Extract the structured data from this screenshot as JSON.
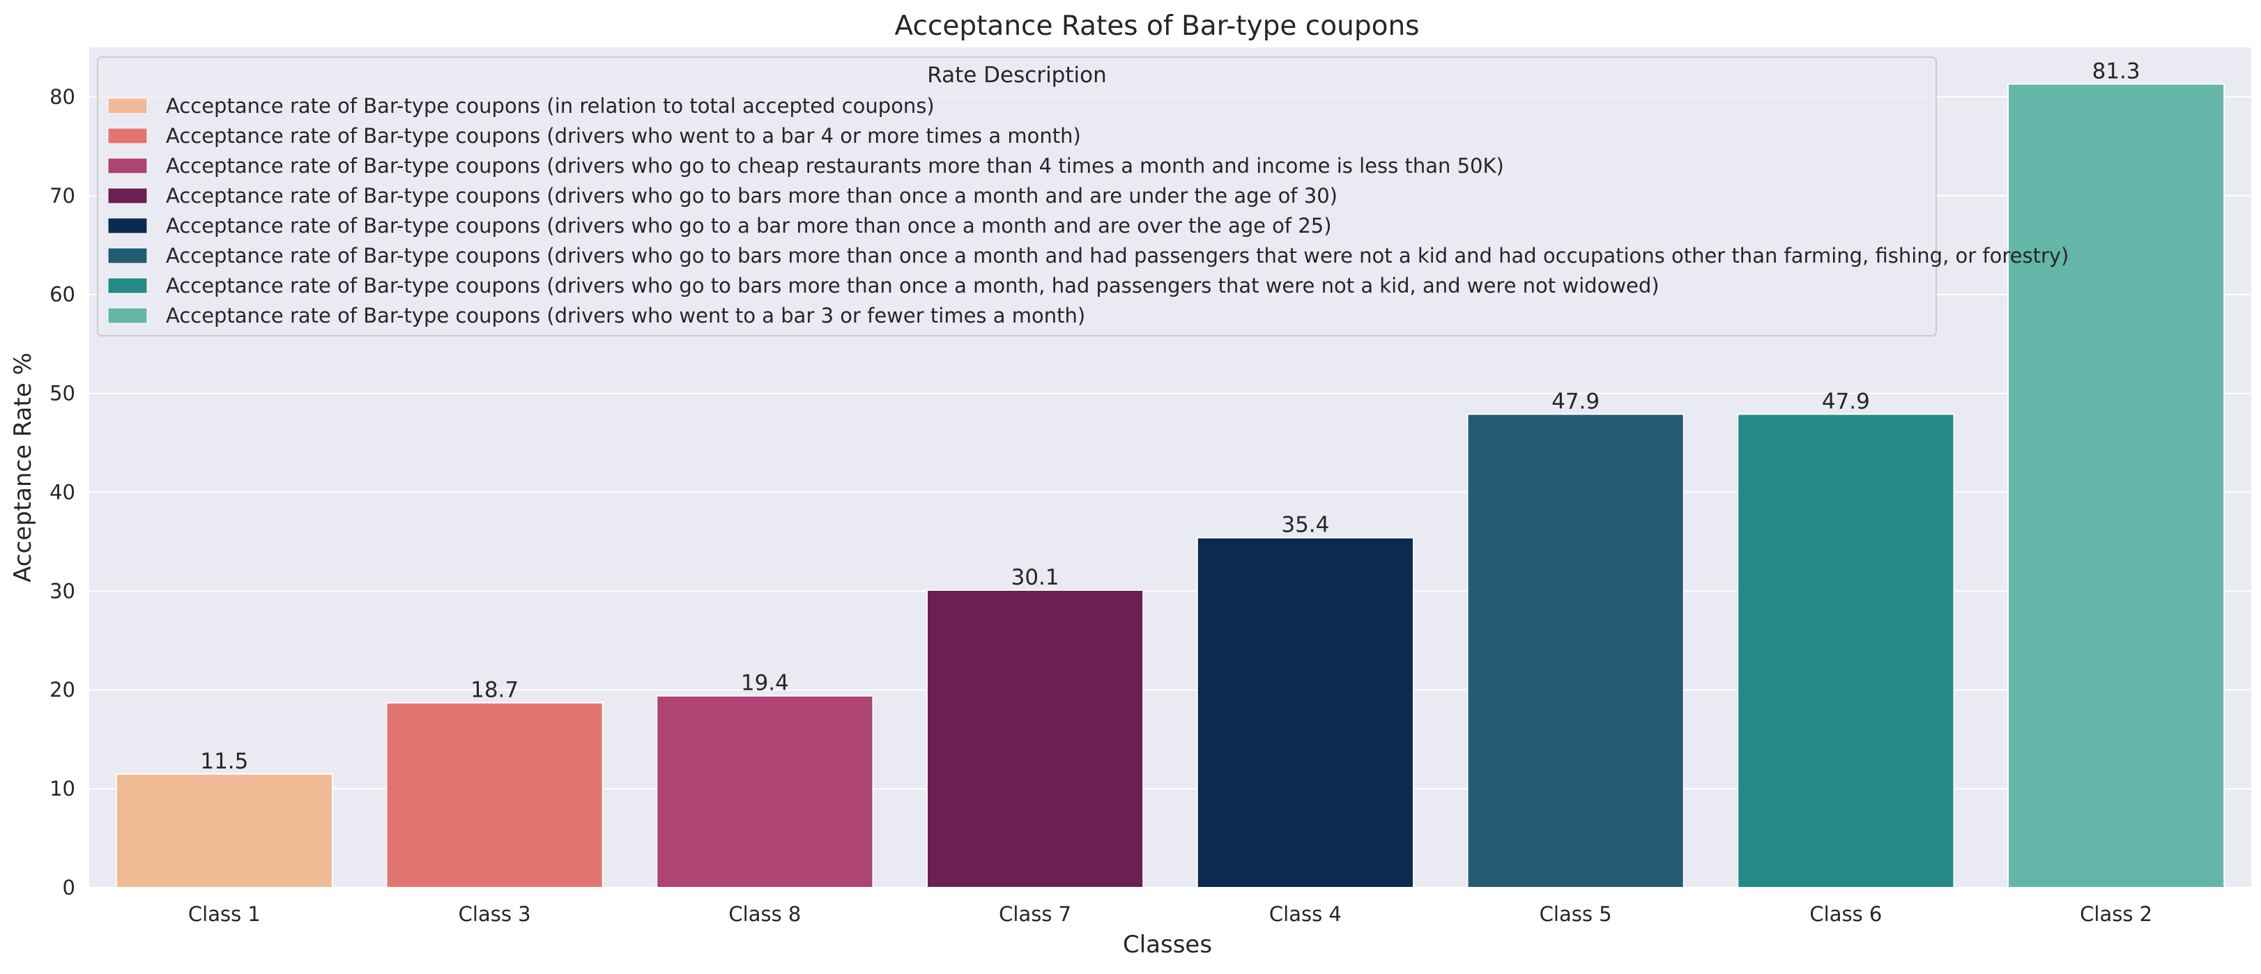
{
  "chart_data": {
    "type": "bar",
    "title": "Acceptance Rates of Bar-type coupons",
    "xlabel": "Classes",
    "ylabel": "Acceptance Rate %",
    "categories": [
      "Class 1",
      "Class 3",
      "Class 8",
      "Class 7",
      "Class 4",
      "Class 5",
      "Class 6",
      "Class 2"
    ],
    "values": [
      11.5,
      18.7,
      19.4,
      30.1,
      35.4,
      47.9,
      47.9,
      81.3
    ],
    "data_labels": [
      "11.5",
      "18.7",
      "19.4",
      "30.1",
      "35.4",
      "47.9",
      "47.9",
      "81.3"
    ],
    "colors": [
      "#f0bb94",
      "#e37571",
      "#ad4473",
      "#6b1f53",
      "#0b2a50",
      "#245c73",
      "#238a87",
      "#64b6a8"
    ],
    "ylim": [
      0,
      85
    ],
    "yticks": [
      0,
      10,
      20,
      30,
      40,
      50,
      60,
      70,
      80
    ],
    "ytick_labels": [
      "0",
      "10",
      "20",
      "30",
      "40",
      "50",
      "60",
      "70",
      "80"
    ],
    "grid": true,
    "legend": {
      "title": "Rate Description",
      "placement": "top-left",
      "entries": [
        "Acceptance rate of Bar-type coupons (in relation to total accepted coupons)",
        "Acceptance rate of Bar-type coupons (drivers who went to a bar 4 or more times a month)",
        "Acceptance rate of Bar-type coupons (drivers who go to cheap restaurants more than 4 times a month and income is less than 50K)",
        "Acceptance rate of Bar-type coupons (drivers who go to bars more than once a month and are under the age of 30)",
        "Acceptance rate of Bar-type coupons (drivers who go to a bar more than once a month and are over the age of 25)",
        "Acceptance rate of Bar-type coupons (drivers who go to bars more than once a month and had passengers that were not a kid and had occupations other than farming, fishing, or forestry)",
        "Acceptance rate of Bar-type coupons (drivers who go to bars more than once a month, had passengers that were not a kid, and were not widowed)",
        "Acceptance rate of Bar-type coupons (drivers who went to a bar 3 or fewer times a month)"
      ]
    }
  }
}
